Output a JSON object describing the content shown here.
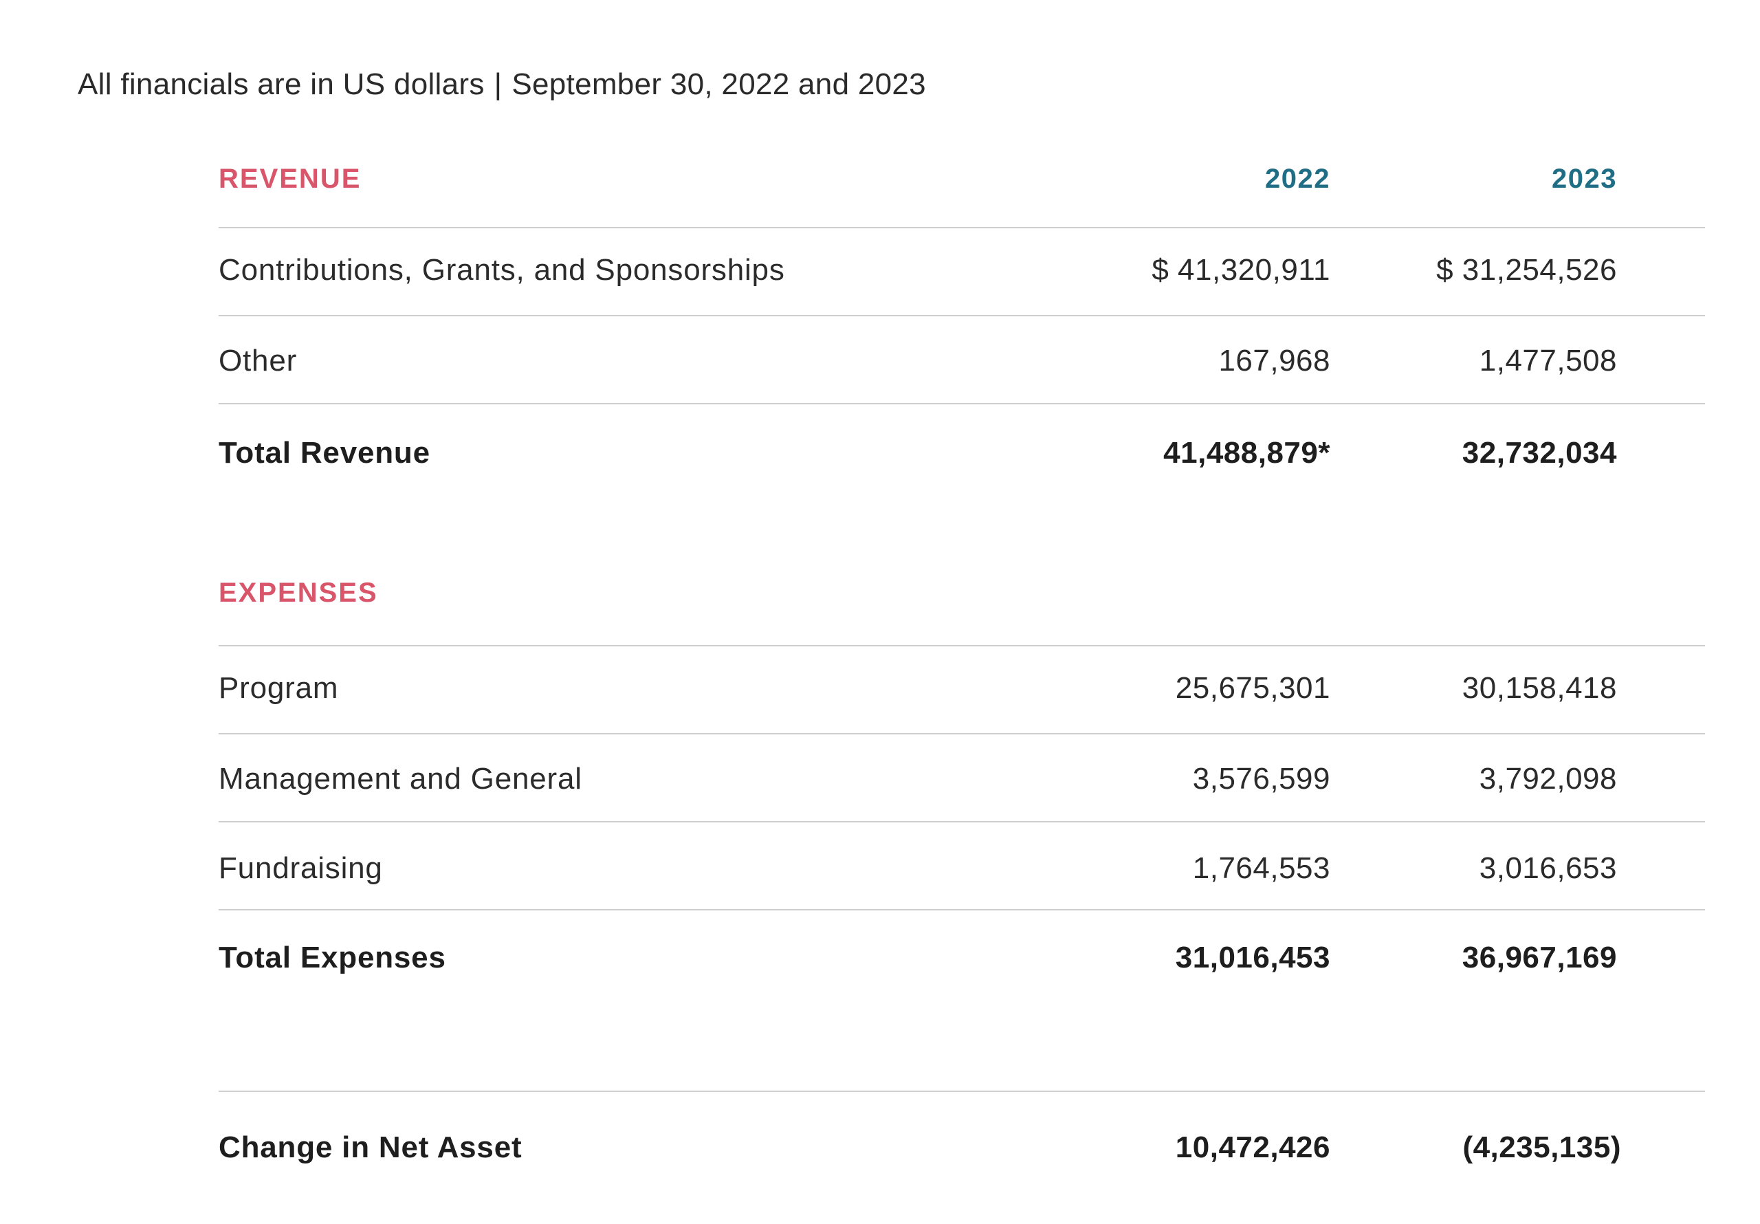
{
  "subtitle": {
    "left": "All financials are in US dollars",
    "separator": "|",
    "right": "September 30, 2022 and 2023"
  },
  "colors": {
    "section_title": "#d9556a",
    "year_header": "#1f6e85",
    "text": "#222222",
    "rule": "#cfcfcf"
  },
  "revenue": {
    "title": "REVENUE",
    "year_2022": "2022",
    "year_2023": "2023",
    "rows": [
      {
        "label": "Contributions, Grants, and Sponsorships",
        "v2022": "$ 41,320,911",
        "v2023": "$ 31,254,526"
      },
      {
        "label": "Other",
        "v2022": "167,968",
        "v2023": "1,477,508"
      }
    ],
    "total": {
      "label": "Total Revenue",
      "v2022": "41,488,879*",
      "v2023": "32,732,034"
    }
  },
  "expenses": {
    "title": "EXPENSES",
    "rows": [
      {
        "label": "Program",
        "v2022": "25,675,301",
        "v2023": "30,158,418"
      },
      {
        "label": "Management and General",
        "v2022": "3,576,599",
        "v2023": "3,792,098"
      },
      {
        "label": "Fundraising",
        "v2022": "1,764,553",
        "v2023": "3,016,653"
      }
    ],
    "total": {
      "label": "Total Expenses",
      "v2022": "31,016,453",
      "v2023": "36,967,169"
    }
  },
  "net": {
    "label": "Change in Net Asset",
    "v2022": "10,472,426",
    "v2023": "(4,235,135)"
  }
}
